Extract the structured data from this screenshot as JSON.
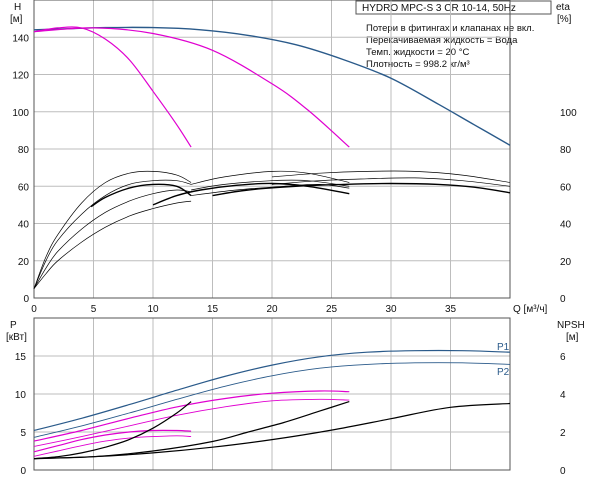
{
  "chart_data": [
    {
      "type": "line",
      "panel": "top",
      "title": "HYDRO MPC-S 3 CR 10-14, 50Hz",
      "notes": [
        "Потери в фитингах и клапанах не вкл.",
        "Перекачиваемая жидкость = Вода",
        "Темп. жидкости = 20 °C",
        "Плотность = 998.2 кг/м³"
      ],
      "xlabel": "Q [м³/ч]",
      "y_left_label": [
        "H",
        "[м]"
      ],
      "y_right_label": [
        "eta",
        "[%]"
      ],
      "xlim": [
        0,
        40
      ],
      "ylim_left": [
        0,
        160
      ],
      "ylim_right": [
        0,
        160
      ],
      "x_ticks": [
        0,
        5,
        10,
        15,
        20,
        25,
        30,
        35
      ],
      "y_left_ticks": [
        0,
        20,
        40,
        60,
        80,
        100,
        120,
        140
      ],
      "y_right_ticks": [
        0,
        20,
        40,
        60,
        80,
        100
      ],
      "grid": true,
      "colors": {
        "head_max": "#2a5a8a",
        "head_reduced": "#e000d0",
        "efficiency": "#000000",
        "grid": "#bdbdbd"
      },
      "series": [
        {
          "kind": "head",
          "color": "#2a5a8a",
          "width": 1.4,
          "x": [
            0,
            3,
            6,
            10,
            14,
            18,
            22,
            26,
            30,
            34,
            37,
            40
          ],
          "y": [
            144,
            144.6,
            145.2,
            145.2,
            144,
            141,
            136,
            128,
            118,
            104,
            93,
            82
          ]
        },
        {
          "kind": "head",
          "color": "#e000d0",
          "width": 1.2,
          "x": [
            0,
            5,
            10,
            15,
            20,
            23,
            26.5
          ],
          "y": [
            143,
            145,
            142,
            133,
            115,
            101,
            81
          ]
        },
        {
          "kind": "head",
          "color": "#e000d0",
          "width": 1.2,
          "x": [
            0,
            2,
            4,
            6,
            8,
            10,
            12,
            13.2
          ],
          "y": [
            143,
            145,
            145,
            139,
            128,
            111,
            93,
            81
          ]
        },
        {
          "kind": "efficiency",
          "color": "#000000",
          "width": 1.4,
          "x": [
            4.8,
            6,
            8,
            10,
            12,
            13.2
          ],
          "y": [
            49,
            54,
            59,
            61,
            60,
            55
          ]
        },
        {
          "kind": "efficiency",
          "color": "#000000",
          "width": 0.7,
          "x": [
            0,
            1,
            2,
            4,
            6,
            8,
            10,
            12,
            13.2
          ],
          "y": [
            5,
            22,
            34,
            51,
            62,
            67,
            68,
            66,
            62
          ]
        },
        {
          "kind": "efficiency",
          "color": "#000000",
          "width": 0.7,
          "x": [
            0,
            1,
            2,
            4,
            6,
            8,
            10,
            12,
            13.2
          ],
          "y": [
            5,
            20,
            31,
            45,
            55,
            61,
            63,
            63,
            61
          ]
        },
        {
          "kind": "efficiency",
          "color": "#000000",
          "width": 0.7,
          "x": [
            0,
            1,
            2,
            4,
            6,
            8,
            10,
            12,
            13.2
          ],
          "y": [
            5,
            16,
            25,
            37,
            46,
            52,
            56,
            58,
            57
          ]
        },
        {
          "kind": "efficiency",
          "color": "#000000",
          "width": 0.7,
          "x": [
            0,
            1,
            2,
            4,
            6,
            8,
            10,
            12,
            13.2
          ],
          "y": [
            5,
            13,
            20,
            30,
            38,
            44,
            48,
            51,
            52
          ]
        },
        {
          "kind": "efficiency",
          "color": "#000000",
          "width": 1.4,
          "x": [
            10,
            12,
            14,
            17,
            20,
            23,
            26.5
          ],
          "y": [
            50,
            55,
            58,
            60.5,
            61.5,
            60,
            56
          ]
        },
        {
          "kind": "efficiency",
          "color": "#000000",
          "width": 0.7,
          "x": [
            13.2,
            16,
            20,
            23,
            26.5
          ],
          "y": [
            61,
            65,
            68,
            67,
            62
          ]
        },
        {
          "kind": "efficiency",
          "color": "#000000",
          "width": 0.7,
          "x": [
            13.2,
            16,
            20,
            23,
            26.5
          ],
          "y": [
            58,
            61,
            63,
            63,
            60
          ]
        },
        {
          "kind": "efficiency",
          "color": "#000000",
          "width": 0.7,
          "x": [
            13.2,
            17,
            21,
            24,
            26.5
          ],
          "y": [
            55,
            58,
            60,
            61,
            59
          ]
        },
        {
          "kind": "efficiency",
          "color": "#000000",
          "width": 1.4,
          "x": [
            15,
            18,
            22,
            26,
            30,
            34,
            37,
            40
          ],
          "y": [
            55,
            58,
            60,
            61,
            61.5,
            61,
            59.5,
            56.5
          ]
        },
        {
          "kind": "efficiency",
          "color": "#000000",
          "width": 0.7,
          "x": [
            20,
            24,
            28,
            32,
            36,
            40
          ],
          "y": [
            65,
            67,
            68,
            68,
            66,
            62
          ]
        },
        {
          "kind": "efficiency",
          "color": "#000000",
          "width": 0.7,
          "x": [
            20,
            24,
            28,
            32,
            36,
            40
          ],
          "y": [
            61,
            63,
            64,
            64.5,
            63,
            60
          ]
        }
      ]
    },
    {
      "type": "line",
      "panel": "bottom",
      "y_left_label": [
        "P",
        "[кВт]"
      ],
      "y_right_label": [
        "NPSH",
        "[м]"
      ],
      "xlim": [
        0,
        40
      ],
      "ylim_left": [
        0,
        20
      ],
      "ylim_right": [
        0,
        8
      ],
      "y_left_ticks": [
        0,
        5,
        10,
        15
      ],
      "y_right_ticks": [
        0,
        2,
        4,
        6
      ],
      "grid": true,
      "curve_labels": [
        "P1",
        "P2"
      ],
      "series": [
        {
          "kind": "power",
          "color": "#2a5a8a",
          "width": 1.2,
          "x": [
            0,
            4,
            8,
            12,
            16,
            20,
            24,
            28,
            32,
            36,
            40
          ],
          "y": [
            5.2,
            6.8,
            8.6,
            10.5,
            12.3,
            13.8,
            14.9,
            15.5,
            15.7,
            15.7,
            15.5
          ]
        },
        {
          "kind": "power",
          "color": "#2a5a8a",
          "width": 0.9,
          "x": [
            0,
            4,
            8,
            12,
            16,
            20,
            24,
            28,
            32,
            36,
            40
          ],
          "y": [
            4.3,
            5.8,
            7.5,
            9.3,
            11,
            12.4,
            13.4,
            13.9,
            14.1,
            14.1,
            13.9
          ]
        },
        {
          "kind": "power",
          "color": "#e000d0",
          "width": 1.2,
          "x": [
            0,
            4,
            8,
            12,
            16,
            20,
            24,
            26.5
          ],
          "y": [
            3.8,
            5.2,
            6.8,
            8.3,
            9.4,
            10.1,
            10.4,
            10.3
          ]
        },
        {
          "kind": "power",
          "color": "#e000d0",
          "width": 0.9,
          "x": [
            0,
            4,
            8,
            12,
            16,
            20,
            24,
            26.5
          ],
          "y": [
            3.1,
            4.4,
            5.8,
            7.2,
            8.3,
            9.1,
            9.3,
            9.2
          ]
        },
        {
          "kind": "power",
          "color": "#e000d0",
          "width": 1.2,
          "x": [
            0,
            2,
            4,
            6,
            8,
            10,
            12,
            13.2
          ],
          "y": [
            2.4,
            3.2,
            4,
            4.6,
            5,
            5.2,
            5.2,
            5.1
          ]
        },
        {
          "kind": "power",
          "color": "#e000d0",
          "width": 0.9,
          "x": [
            0,
            2,
            4,
            6,
            8,
            10,
            12,
            13.2
          ],
          "y": [
            1.8,
            2.5,
            3.2,
            3.8,
            4.2,
            4.4,
            4.5,
            4.4
          ]
        },
        {
          "kind": "npsh",
          "color": "#000000",
          "width": 1.2,
          "axis": "right",
          "x": [
            0,
            2,
            4,
            6,
            8,
            10,
            12,
            13.2
          ],
          "y": [
            0.6,
            0.7,
            0.9,
            1.2,
            1.6,
            2.2,
            3,
            3.6
          ]
        },
        {
          "kind": "npsh",
          "color": "#000000",
          "width": 1.2,
          "axis": "right",
          "x": [
            0,
            5,
            10,
            15,
            18,
            21,
            24,
            26.5
          ],
          "y": [
            0.6,
            0.7,
            1,
            1.5,
            2,
            2.5,
            3.1,
            3.6
          ]
        },
        {
          "kind": "npsh",
          "color": "#000000",
          "width": 1.2,
          "axis": "right",
          "x": [
            0,
            5,
            10,
            15,
            20,
            25,
            30,
            35,
            40
          ],
          "y": [
            0.6,
            0.7,
            0.9,
            1.2,
            1.6,
            2.1,
            2.7,
            3.3,
            3.5
          ]
        }
      ]
    }
  ]
}
